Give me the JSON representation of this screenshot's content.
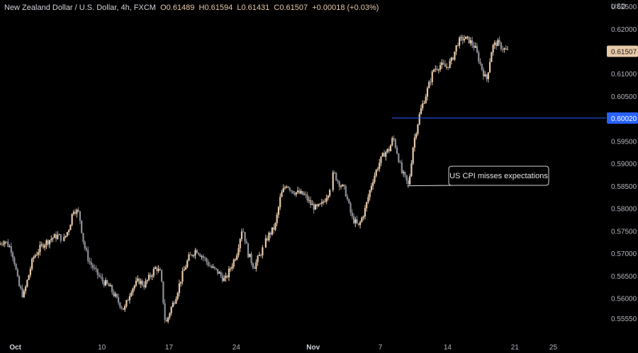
{
  "header": {
    "symbol": "New Zealand Dollar / U.S. Dollar, 4h, FXCM",
    "open": "O0.61489",
    "high": "H0.61594",
    "low": "L0.61431",
    "close": "C0.61507",
    "change": "+0.00018 (+0.03%)"
  },
  "colors": {
    "background": "#000000",
    "up": "#e8c9a8",
    "down": "#8d8f97",
    "level_line": "#2962ff",
    "last_price_tag": "#e8c9a8",
    "axis_text": "#b2b5be"
  },
  "chart_data": {
    "type": "candlestick",
    "ylabel": "USD",
    "ylim": [
      0.5515,
      0.6265
    ],
    "y_ticks": [
      0.5555,
      0.56,
      0.565,
      0.57,
      0.575,
      0.58,
      0.585,
      0.59,
      0.595,
      0.6,
      0.605,
      0.61,
      0.62,
      0.625
    ],
    "y_tick_labels": [
      "0.55550",
      "0.56000",
      "0.56500",
      "0.57000",
      "0.57500",
      "0.58000",
      "0.58500",
      "0.59000",
      "0.59500",
      "0.60000",
      "0.60500",
      "0.61000",
      "0.62000",
      "0.62500"
    ],
    "x_labels": [
      "Oct",
      "10",
      "17",
      "24",
      "Nov",
      "7",
      "14",
      "21",
      "25"
    ],
    "x_label_positions_days": [
      0,
      9,
      16,
      23,
      31,
      38,
      45,
      52,
      56
    ],
    "x_range_days": [
      -1.6,
      61.5
    ],
    "last_price": 0.61507,
    "last_price_label": "0.61507",
    "level": 0.6002,
    "level_label": "0.60020",
    "level_start_day": 39.2,
    "annotation": {
      "text": "US CPI misses expectations",
      "target_day": 40.5,
      "target_price": 0.5848
    },
    "candle_width_days": 0.115,
    "path_days": [
      -1.6,
      -1.0,
      -0.3,
      0,
      0.5,
      1.0,
      2.0,
      3.0,
      4.0,
      4.6,
      5.2,
      5.8,
      6.2,
      6.8,
      7.3,
      7.8,
      8.5,
      9.2,
      10.0,
      10.8,
      11.5,
      12.2,
      13.0,
      13.6,
      14.2,
      14.8,
      15.3,
      15.8,
      16.3,
      16.8,
      17.5,
      18.2,
      19.0,
      19.8,
      20.5,
      21.2,
      22.0,
      22.6,
      23.2,
      23.8,
      24.4,
      25.0,
      25.8,
      26.5,
      27.2,
      27.8,
      28.4,
      29.0,
      29.6,
      30.3,
      30.9,
      31.5,
      32.1,
      32.8,
      33.3,
      33.8,
      34.5,
      35.2,
      35.9,
      36.6,
      37.3,
      38.0,
      38.6,
      39.1,
      39.5,
      40.0,
      40.4,
      40.7,
      41.1,
      41.6,
      42.3,
      43.0,
      43.7,
      44.4,
      45.0,
      45.6,
      46.2,
      46.8,
      47.4,
      48.0,
      48.6,
      49.2,
      49.8,
      50.3,
      50.8,
      51.3
    ],
    "path_prices": [
      0.572,
      0.573,
      0.5712,
      0.569,
      0.563,
      0.5605,
      0.569,
      0.572,
      0.5735,
      0.574,
      0.573,
      0.576,
      0.58,
      0.579,
      0.572,
      0.5685,
      0.566,
      0.564,
      0.5625,
      0.5595,
      0.5575,
      0.562,
      0.564,
      0.563,
      0.565,
      0.567,
      0.5655,
      0.554,
      0.5575,
      0.56,
      0.565,
      0.569,
      0.571,
      0.569,
      0.567,
      0.566,
      0.564,
      0.567,
      0.57,
      0.576,
      0.57,
      0.567,
      0.5705,
      0.574,
      0.576,
      0.583,
      0.5855,
      0.584,
      0.5835,
      0.583,
      0.581,
      0.58,
      0.581,
      0.584,
      0.588,
      0.586,
      0.584,
      0.578,
      0.576,
      0.58,
      0.586,
      0.59,
      0.5925,
      0.5932,
      0.596,
      0.5918,
      0.588,
      0.587,
      0.585,
      0.5945,
      0.6015,
      0.606,
      0.611,
      0.612,
      0.6115,
      0.613,
      0.617,
      0.618,
      0.6175,
      0.616,
      0.612,
      0.6085,
      0.616,
      0.617,
      0.616,
      0.6151
    ]
  }
}
